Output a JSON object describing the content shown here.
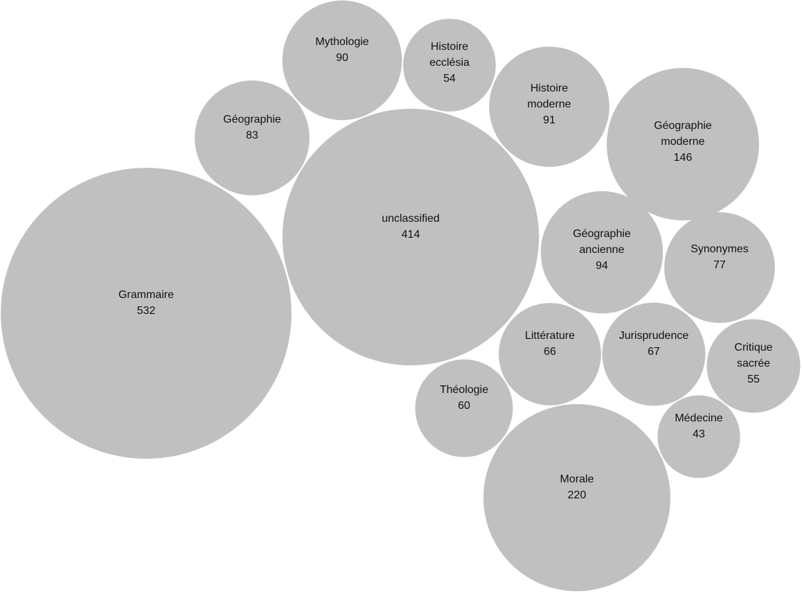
{
  "chart_data": {
    "type": "bubble",
    "color": "#c0c0c0",
    "categories": [
      "Grammaire",
      "unclassified",
      "Mythologie",
      "Histoire ecclésia",
      "Histoire moderne",
      "Géographie",
      "Géographie moderne",
      "Géographie ancienne",
      "Synonymes",
      "Littérature",
      "Jurisprudence",
      "Critique sacrée",
      "Théologie",
      "Médecine",
      "Morale"
    ],
    "values": [
      532,
      414,
      90,
      54,
      91,
      83,
      146,
      94,
      77,
      66,
      67,
      55,
      60,
      43,
      220
    ]
  }
}
